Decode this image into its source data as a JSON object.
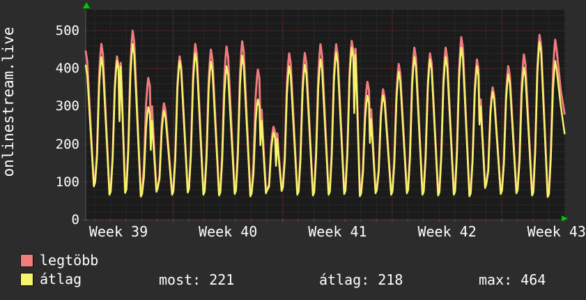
{
  "chart_data": {
    "type": "line",
    "title": "onlinestream.live",
    "y_ticks": [
      0,
      100,
      200,
      300,
      400,
      500
    ],
    "ylim": [
      0,
      555
    ],
    "x_labels": [
      "Week 39",
      "Week 40",
      "Week 41",
      "Week 42",
      "Week 43"
    ],
    "grid": "dotted minor every 20 units and 1 day; dotted red major every 100 units and 1 week",
    "legend_position": "bottom-left",
    "series": [
      {
        "name": "legtöbb",
        "color": "#f07d7d",
        "unit_days": [
          [
            445,
            0,
            92
          ],
          [
            465,
            0,
            70
          ],
          [
            432,
            415,
            75
          ],
          [
            500,
            0,
            65
          ],
          [
            375,
            300,
            78
          ],
          [
            308,
            0,
            70
          ],
          [
            432,
            0,
            76
          ],
          [
            465,
            0,
            70
          ],
          [
            450,
            0,
            68
          ],
          [
            458,
            0,
            72
          ],
          [
            472,
            0,
            66
          ],
          [
            397,
            291,
            74
          ],
          [
            246,
            228,
            80
          ],
          [
            440,
            0,
            70
          ],
          [
            441,
            0,
            68
          ],
          [
            464,
            0,
            70
          ],
          [
            464,
            0,
            72
          ],
          [
            473,
            452,
            66
          ],
          [
            365,
            292,
            74
          ],
          [
            345,
            0,
            70
          ],
          [
            412,
            0,
            74
          ],
          [
            455,
            0,
            70
          ],
          [
            440,
            0,
            68
          ],
          [
            455,
            0,
            70
          ],
          [
            483,
            0,
            66
          ],
          [
            424,
            318,
            88
          ],
          [
            350,
            0,
            72
          ],
          [
            406,
            0,
            74
          ],
          [
            437,
            0,
            68
          ],
          [
            489,
            0,
            64
          ],
          [
            476,
            0,
            0
          ]
        ],
        "end_value": 280
      },
      {
        "name": "átlag",
        "color": "#f5f56b",
        "unit_days": [
          [
            408,
            0,
            88
          ],
          [
            430,
            0,
            66
          ],
          [
            420,
            405,
            71
          ],
          [
            465,
            0,
            61
          ],
          [
            298,
            262,
            74
          ],
          [
            288,
            0,
            66
          ],
          [
            420,
            0,
            72
          ],
          [
            440,
            0,
            66
          ],
          [
            418,
            0,
            64
          ],
          [
            406,
            0,
            68
          ],
          [
            434,
            0,
            62
          ],
          [
            318,
            262,
            70
          ],
          [
            230,
            214,
            76
          ],
          [
            406,
            0,
            66
          ],
          [
            410,
            0,
            64
          ],
          [
            424,
            0,
            66
          ],
          [
            442,
            0,
            68
          ],
          [
            455,
            436,
            62
          ],
          [
            328,
            266,
            70
          ],
          [
            329,
            0,
            66
          ],
          [
            391,
            0,
            70
          ],
          [
            430,
            0,
            66
          ],
          [
            424,
            0,
            64
          ],
          [
            430,
            0,
            66
          ],
          [
            455,
            0,
            62
          ],
          [
            406,
            300,
            84
          ],
          [
            338,
            0,
            68
          ],
          [
            384,
            0,
            70
          ],
          [
            402,
            0,
            64
          ],
          [
            470,
            0,
            60
          ],
          [
            420,
            0,
            0
          ]
        ],
        "end_value": 228
      }
    ],
    "stats": [
      {
        "label": "most:",
        "value": "221"
      },
      {
        "label": "átlag:",
        "value": "218"
      },
      {
        "label": "max:",
        "value": "464"
      }
    ],
    "colors": {
      "page_bg": "#2c2c2c",
      "plot_bg": "#1b1b1b",
      "minor_grid": "#3e3e3e",
      "major_grid": "#9c3a3a",
      "axis": "#5a5a5a",
      "arrow": "#00c800",
      "text": "#ffffff"
    }
  }
}
